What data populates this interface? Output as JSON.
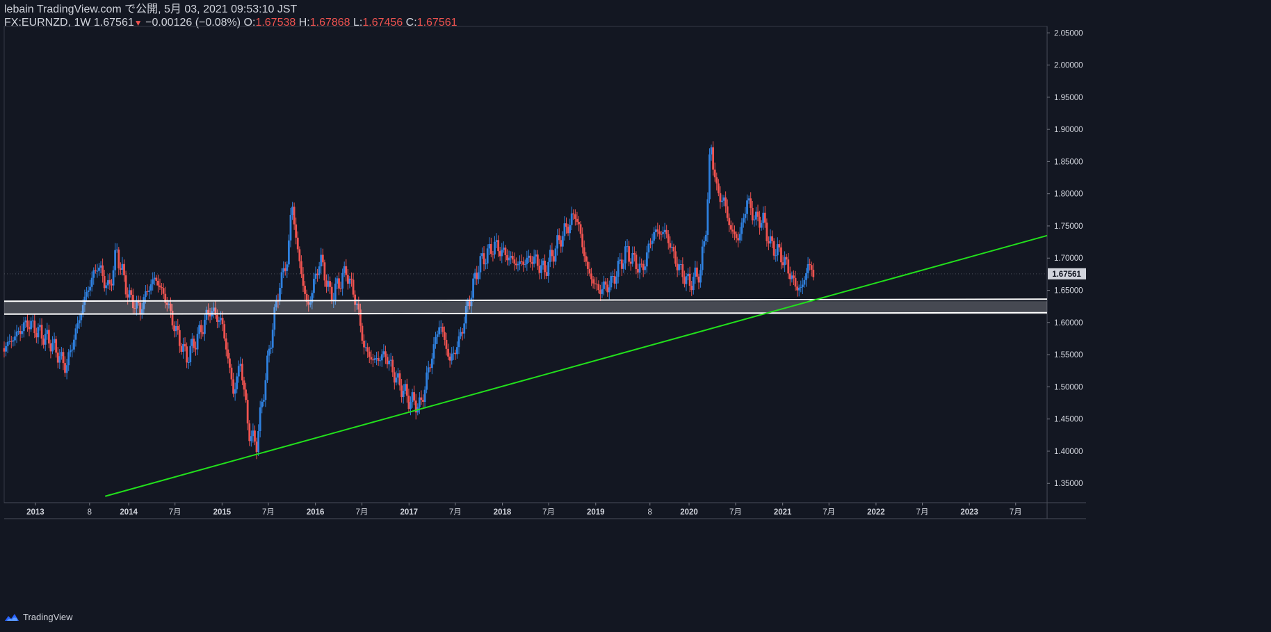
{
  "header": {
    "line1": "lebain TradingView.com で公開, 5月 03, 2021 09:53:10 JST",
    "symbol": "FX:EURNZD, 1W",
    "last": "1.67561",
    "change": "−0.00126 (−0.08%)",
    "o_label": "O:",
    "o_value": "1.67538",
    "h_label": "H:",
    "h_value": "1.67868",
    "l_label": "L:",
    "l_value": "1.67456",
    "c_label": "C:",
    "c_value": "1.67561",
    "down_arrow": "▼"
  },
  "footer": {
    "brand": "TradingView",
    "logo_icon": "tradingview-logo-icon"
  },
  "colors": {
    "background": "#131722",
    "up": "#2f81e0",
    "down": "#ef5350",
    "trendline": "#22e01c",
    "zone": "#ffffff",
    "axis_text": "#d1d4dc"
  },
  "chart_data": {
    "type": "candlestick",
    "symbol": "FX:EURNZD",
    "interval": "1W",
    "ylim": [
      1.32,
      2.06
    ],
    "xlim": [
      "2012-09-01",
      "2023-11-01"
    ],
    "yticks": [
      "2.05000",
      "2.00000",
      "1.95000",
      "1.90000",
      "1.85000",
      "1.80000",
      "1.75000",
      "1.70000",
      "1.65000",
      "1.60000",
      "1.55000",
      "1.50000",
      "1.45000",
      "1.40000",
      "1.35000"
    ],
    "xticks": [
      {
        "label": "2013",
        "date": "2013-01-01"
      },
      {
        "label": "8",
        "date": "2013-08-01"
      },
      {
        "label": "2014",
        "date": "2014-01-01"
      },
      {
        "label": "7月",
        "date": "2014-07-01"
      },
      {
        "label": "2015",
        "date": "2015-01-01"
      },
      {
        "label": "7月",
        "date": "2015-07-01"
      },
      {
        "label": "2016",
        "date": "2016-01-01"
      },
      {
        "label": "7月",
        "date": "2016-07-01"
      },
      {
        "label": "2017",
        "date": "2017-01-01"
      },
      {
        "label": "7月",
        "date": "2017-07-01"
      },
      {
        "label": "2018",
        "date": "2018-01-01"
      },
      {
        "label": "7月",
        "date": "2018-07-01"
      },
      {
        "label": "2019",
        "date": "2019-01-01"
      },
      {
        "label": "8",
        "date": "2019-08-01"
      },
      {
        "label": "2020",
        "date": "2020-01-01"
      },
      {
        "label": "7月",
        "date": "2020-07-01"
      },
      {
        "label": "2021",
        "date": "2021-01-01"
      },
      {
        "label": "7月",
        "date": "2021-07-01"
      },
      {
        "label": "2022",
        "date": "2022-01-01"
      },
      {
        "label": "7月",
        "date": "2022-07-01"
      },
      {
        "label": "2023",
        "date": "2023-01-01"
      },
      {
        "label": "7月",
        "date": "2023-07-01"
      }
    ],
    "last_price_label": "1.67561",
    "last_price": 1.67561,
    "close_path": [
      {
        "date": "2012-09-01",
        "price": 1.56
      },
      {
        "date": "2012-12-01",
        "price": 1.6
      },
      {
        "date": "2013-03-01",
        "price": 1.57
      },
      {
        "date": "2013-05-01",
        "price": 1.53
      },
      {
        "date": "2013-07-15",
        "price": 1.64
      },
      {
        "date": "2013-09-01",
        "price": 1.69
      },
      {
        "date": "2013-10-15",
        "price": 1.65
      },
      {
        "date": "2013-11-15",
        "price": 1.71
      },
      {
        "date": "2014-01-01",
        "price": 1.64
      },
      {
        "date": "2014-02-15",
        "price": 1.62
      },
      {
        "date": "2014-03-15",
        "price": 1.65
      },
      {
        "date": "2014-04-15",
        "price": 1.67
      },
      {
        "date": "2014-06-01",
        "price": 1.63
      },
      {
        "date": "2014-07-01",
        "price": 1.59
      },
      {
        "date": "2014-08-15",
        "price": 1.545
      },
      {
        "date": "2014-10-01",
        "price": 1.58
      },
      {
        "date": "2014-11-15",
        "price": 1.62
      },
      {
        "date": "2015-01-01",
        "price": 1.6
      },
      {
        "date": "2015-02-15",
        "price": 1.49
      },
      {
        "date": "2015-03-15",
        "price": 1.54
      },
      {
        "date": "2015-04-15",
        "price": 1.43
      },
      {
        "date": "2015-05-15",
        "price": 1.41
      },
      {
        "date": "2015-06-15",
        "price": 1.5
      },
      {
        "date": "2015-07-20",
        "price": 1.6
      },
      {
        "date": "2015-08-15",
        "price": 1.66
      },
      {
        "date": "2015-09-15",
        "price": 1.7
      },
      {
        "date": "2015-10-01",
        "price": 1.79
      },
      {
        "date": "2015-10-20",
        "price": 1.72
      },
      {
        "date": "2015-12-01",
        "price": 1.62
      },
      {
        "date": "2016-01-20",
        "price": 1.7
      },
      {
        "date": "2016-03-01",
        "price": 1.64
      },
      {
        "date": "2016-04-01",
        "price": 1.66
      },
      {
        "date": "2016-05-01",
        "price": 1.68
      },
      {
        "date": "2016-06-10",
        "price": 1.63
      },
      {
        "date": "2016-07-10",
        "price": 1.56
      },
      {
        "date": "2016-08-15",
        "price": 1.54
      },
      {
        "date": "2016-10-01",
        "price": 1.55
      },
      {
        "date": "2016-11-15",
        "price": 1.51
      },
      {
        "date": "2017-01-01",
        "price": 1.48
      },
      {
        "date": "2017-02-15",
        "price": 1.47
      },
      {
        "date": "2017-03-15",
        "price": 1.52
      },
      {
        "date": "2017-05-01",
        "price": 1.6
      },
      {
        "date": "2017-06-10",
        "price": 1.54
      },
      {
        "date": "2017-07-15",
        "price": 1.57
      },
      {
        "date": "2017-08-15",
        "price": 1.62
      },
      {
        "date": "2017-10-01",
        "price": 1.69
      },
      {
        "date": "2017-12-01",
        "price": 1.72
      },
      {
        "date": "2018-03-01",
        "price": 1.69
      },
      {
        "date": "2018-05-01",
        "price": 1.7
      },
      {
        "date": "2018-06-15",
        "price": 1.68
      },
      {
        "date": "2018-08-15",
        "price": 1.73
      },
      {
        "date": "2018-10-15",
        "price": 1.77
      },
      {
        "date": "2018-12-01",
        "price": 1.68
      },
      {
        "date": "2019-01-10",
        "price": 1.65
      },
      {
        "date": "2019-03-01",
        "price": 1.66
      },
      {
        "date": "2019-05-01",
        "price": 1.71
      },
      {
        "date": "2019-07-01",
        "price": 1.68
      },
      {
        "date": "2019-08-15",
        "price": 1.74
      },
      {
        "date": "2019-10-01",
        "price": 1.74
      },
      {
        "date": "2019-11-15",
        "price": 1.69
      },
      {
        "date": "2020-01-01",
        "price": 1.66
      },
      {
        "date": "2020-02-15",
        "price": 1.68
      },
      {
        "date": "2020-03-10",
        "price": 1.76
      },
      {
        "date": "2020-03-25",
        "price": 1.88
      },
      {
        "date": "2020-04-20",
        "price": 1.8
      },
      {
        "date": "2020-05-15",
        "price": 1.79
      },
      {
        "date": "2020-06-15",
        "price": 1.74
      },
      {
        "date": "2020-07-15",
        "price": 1.73
      },
      {
        "date": "2020-08-15",
        "price": 1.79
      },
      {
        "date": "2020-09-15",
        "price": 1.76
      },
      {
        "date": "2020-10-15",
        "price": 1.76
      },
      {
        "date": "2020-11-15",
        "price": 1.72
      },
      {
        "date": "2020-12-15",
        "price": 1.71
      },
      {
        "date": "2021-01-15",
        "price": 1.69
      },
      {
        "date": "2021-02-15",
        "price": 1.66
      },
      {
        "date": "2021-03-15",
        "price": 1.65
      },
      {
        "date": "2021-04-10",
        "price": 1.69
      },
      {
        "date": "2021-05-01",
        "price": 1.6756
      }
    ],
    "support_zone": {
      "top": 1.633,
      "bottom": 1.613,
      "start": "2012-09-01",
      "end": "2023-11-01"
    },
    "trendline": {
      "from": {
        "date": "2013-10-01",
        "price": 1.33
      },
      "to": {
        "date": "2023-11-01",
        "price": 1.735
      }
    }
  }
}
